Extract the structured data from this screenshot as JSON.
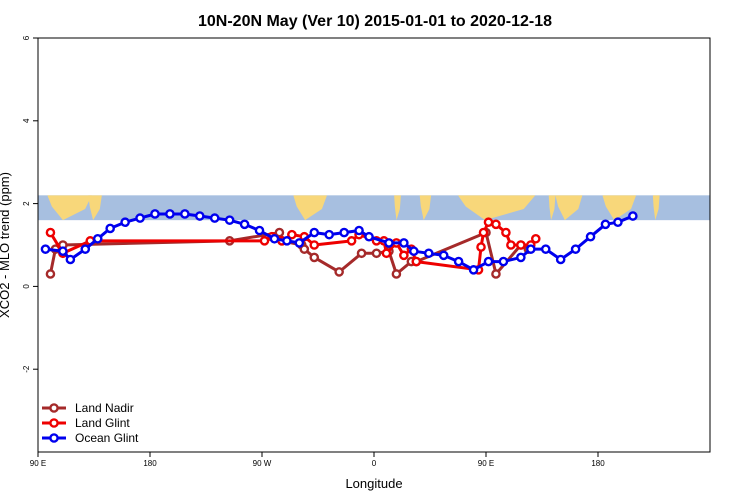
{
  "chart_data": {
    "type": "line",
    "title": "10N-20N May (Ver 10)   2015-01-01 to 2020-12-18",
    "xlabel": "Longitude",
    "ylabel": "XCO2 - MLO trend (ppm)",
    "xlim": [
      -90,
      180
    ],
    "ylim": [
      -4,
      6
    ],
    "x_ticks": [
      {
        "value": -90,
        "label": "90 E"
      },
      {
        "value": -45,
        "label": "180"
      },
      {
        "value": 0,
        "label": "90 W"
      },
      {
        "value": 45,
        "label": "0"
      },
      {
        "value": 90,
        "label": "90 E"
      },
      {
        "value": 135,
        "label": "180"
      }
    ],
    "y_ticks": [
      {
        "value": -2,
        "label": "-2"
      },
      {
        "value": 0,
        "label": "0"
      },
      {
        "value": 2,
        "label": "2"
      },
      {
        "value": 4,
        "label": "4"
      },
      {
        "value": 6,
        "label": "6"
      }
    ],
    "legend_position": "bottom-left",
    "background_map": {
      "y_range": [
        1.6,
        2.2
      ],
      "ocean_color": "#a7bfe0",
      "land_color": "#f8d77a"
    },
    "series": [
      {
        "name": "Land Nadir",
        "color": "#a52a2a",
        "x": [
          -85,
          -83,
          -80,
          -13,
          7,
          8,
          16,
          17,
          21,
          31,
          40,
          46,
          51,
          54,
          60,
          62,
          90,
          94,
          104,
          107
        ],
        "y": [
          0.3,
          0.9,
          1.0,
          1.1,
          1.3,
          1.1,
          1.0,
          0.9,
          0.7,
          0.35,
          0.8,
          0.8,
          0.85,
          0.3,
          0.6,
          0.6,
          1.3,
          0.3,
          1.0,
          0.9
        ]
      },
      {
        "name": "Land Glint",
        "color": "#ee0000",
        "x": [
          -85,
          -80,
          -69,
          1,
          4,
          8,
          12,
          17,
          21,
          36,
          39,
          46,
          49,
          50,
          54,
          57,
          60,
          62,
          87,
          88,
          89,
          91,
          94,
          98,
          100,
          104,
          108,
          110
        ],
        "y": [
          1.3,
          0.8,
          1.1,
          1.1,
          1.2,
          1.1,
          1.25,
          1.2,
          1.0,
          1.1,
          1.25,
          1.1,
          1.1,
          0.8,
          1.05,
          0.75,
          0.9,
          0.6,
          0.4,
          0.95,
          1.3,
          1.55,
          1.5,
          1.3,
          1.0,
          1.0,
          1.0,
          1.15
        ]
      },
      {
        "name": "Ocean Glint",
        "color": "#0000ee",
        "x": [
          -87,
          -80,
          -77,
          -71,
          -66,
          -61,
          -55,
          -49,
          -43,
          -37,
          -31,
          -25,
          -19,
          -13,
          -7,
          -1,
          5,
          10,
          15,
          21,
          27,
          33,
          39,
          43,
          51,
          57,
          61,
          67,
          73,
          79,
          85,
          91,
          97,
          104,
          108,
          114,
          120,
          126,
          132,
          138,
          143,
          149
        ],
        "y": [
          0.9,
          0.85,
          0.65,
          0.9,
          1.15,
          1.4,
          1.55,
          1.65,
          1.75,
          1.75,
          1.75,
          1.7,
          1.65,
          1.6,
          1.5,
          1.35,
          1.15,
          1.1,
          1.05,
          1.3,
          1.25,
          1.3,
          1.35,
          1.2,
          1.05,
          1.05,
          0.85,
          0.8,
          0.75,
          0.6,
          0.4,
          0.6,
          0.6,
          0.7,
          0.9,
          0.9,
          0.65,
          0.9,
          1.2,
          1.5,
          1.55,
          1.7
        ]
      }
    ]
  }
}
